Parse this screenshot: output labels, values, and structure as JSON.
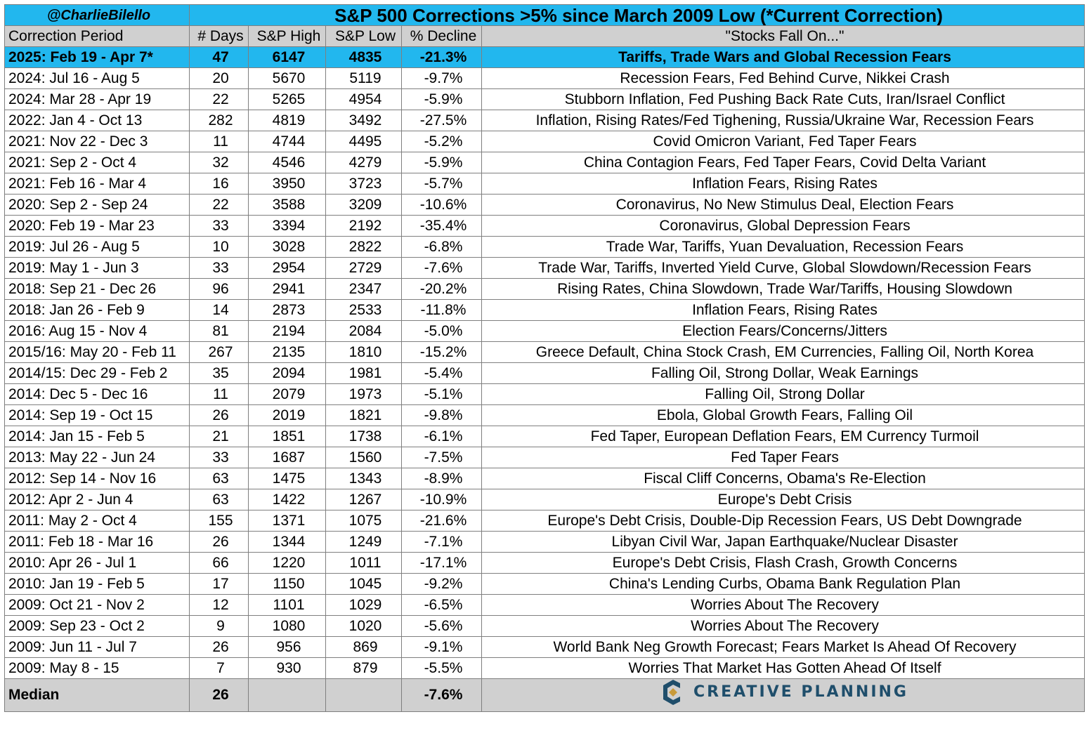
{
  "handle": "@CharlieBilello",
  "title": "S&P 500 Corrections >5% since March 2009 Low (*Current Correction)",
  "columns": [
    "Correction Period",
    "# Days",
    "S&P High",
    "S&P Low",
    "% Decline",
    "\"Stocks Fall On...\""
  ],
  "colors": {
    "accent": "#22b7ee",
    "header_bg": "#d0d0d0",
    "logo": "#1f4e6b",
    "logo_accent": "#c89a3a"
  },
  "rows": [
    {
      "period": "2025: Feb 19 - Apr 7*",
      "days": "47",
      "high": "6147",
      "low": "4835",
      "decline": "-21.3%",
      "cause": "Tariffs, Trade Wars and Global Recession Fears",
      "current": true
    },
    {
      "period": "2024: Jul 16 - Aug 5",
      "days": "20",
      "high": "5670",
      "low": "5119",
      "decline": "-9.7%",
      "cause": "Recession Fears, Fed Behind Curve, Nikkei Crash"
    },
    {
      "period": "2024: Mar 28 - Apr 19",
      "days": "22",
      "high": "5265",
      "low": "4954",
      "decline": "-5.9%",
      "cause": "Stubborn Inflation, Fed Pushing Back Rate Cuts, Iran/Israel Conflict"
    },
    {
      "period": "2022: Jan 4 - Oct 13",
      "days": "282",
      "high": "4819",
      "low": "3492",
      "decline": "-27.5%",
      "cause": "Inflation, Rising Rates/Fed Tighening, Russia/Ukraine War, Recession Fears"
    },
    {
      "period": "2021: Nov 22 - Dec 3",
      "days": "11",
      "high": "4744",
      "low": "4495",
      "decline": "-5.2%",
      "cause": "Covid Omicron Variant, Fed Taper Fears"
    },
    {
      "period": "2021: Sep 2 - Oct 4",
      "days": "32",
      "high": "4546",
      "low": "4279",
      "decline": "-5.9%",
      "cause": "China Contagion Fears, Fed Taper Fears, Covid Delta Variant"
    },
    {
      "period": "2021: Feb 16 - Mar 4",
      "days": "16",
      "high": "3950",
      "low": "3723",
      "decline": "-5.7%",
      "cause": "Inflation Fears, Rising Rates"
    },
    {
      "period": "2020: Sep 2 - Sep 24",
      "days": "22",
      "high": "3588",
      "low": "3209",
      "decline": "-10.6%",
      "cause": "Coronavirus, No New Stimulus Deal, Election Fears"
    },
    {
      "period": "2020: Feb 19 - Mar 23",
      "days": "33",
      "high": "3394",
      "low": "2192",
      "decline": "-35.4%",
      "cause": "Coronavirus, Global Depression Fears"
    },
    {
      "period": "2019: Jul 26 - Aug 5",
      "days": "10",
      "high": "3028",
      "low": "2822",
      "decline": "-6.8%",
      "cause": "Trade War, Tariffs, Yuan Devaluation, Recession Fears"
    },
    {
      "period": "2019: May 1 - Jun 3",
      "days": "33",
      "high": "2954",
      "low": "2729",
      "decline": "-7.6%",
      "cause": "Trade War, Tariffs, Inverted Yield Curve, Global Slowdown/Recession Fears"
    },
    {
      "period": "2018: Sep 21 - Dec 26",
      "days": "96",
      "high": "2941",
      "low": "2347",
      "decline": "-20.2%",
      "cause": "Rising Rates, China Slowdown, Trade War/Tariffs, Housing Slowdown"
    },
    {
      "period": "2018: Jan 26 - Feb 9",
      "days": "14",
      "high": "2873",
      "low": "2533",
      "decline": "-11.8%",
      "cause": "Inflation Fears, Rising Rates"
    },
    {
      "period": "2016: Aug 15 - Nov 4",
      "days": "81",
      "high": "2194",
      "low": "2084",
      "decline": "-5.0%",
      "cause": "Election Fears/Concerns/Jitters"
    },
    {
      "period": "2015/16: May 20 - Feb 11",
      "days": "267",
      "high": "2135",
      "low": "1810",
      "decline": "-15.2%",
      "cause": "Greece Default, China Stock Crash, EM Currencies, Falling Oil, North Korea"
    },
    {
      "period": "2014/15: Dec 29 - Feb 2",
      "days": "35",
      "high": "2094",
      "low": "1981",
      "decline": "-5.4%",
      "cause": "Falling Oil, Strong Dollar, Weak Earnings"
    },
    {
      "period": "2014: Dec 5 - Dec 16",
      "days": "11",
      "high": "2079",
      "low": "1973",
      "decline": "-5.1%",
      "cause": "Falling Oil, Strong Dollar"
    },
    {
      "period": "2014: Sep 19 - Oct 15",
      "days": "26",
      "high": "2019",
      "low": "1821",
      "decline": "-9.8%",
      "cause": "Ebola, Global Growth Fears, Falling Oil"
    },
    {
      "period": "2014: Jan 15 - Feb 5",
      "days": "21",
      "high": "1851",
      "low": "1738",
      "decline": "-6.1%",
      "cause": "Fed Taper, European Deflation Fears, EM Currency Turmoil"
    },
    {
      "period": "2013: May 22 - Jun 24",
      "days": "33",
      "high": "1687",
      "low": "1560",
      "decline": "-7.5%",
      "cause": "Fed Taper Fears"
    },
    {
      "period": "2012: Sep 14 - Nov 16",
      "days": "63",
      "high": "1475",
      "low": "1343",
      "decline": "-8.9%",
      "cause": "Fiscal Cliff Concerns, Obama's Re-Election"
    },
    {
      "period": "2012: Apr 2 - Jun 4",
      "days": "63",
      "high": "1422",
      "low": "1267",
      "decline": "-10.9%",
      "cause": "Europe's Debt Crisis"
    },
    {
      "period": "2011: May 2 - Oct 4",
      "days": "155",
      "high": "1371",
      "low": "1075",
      "decline": "-21.6%",
      "cause": "Europe's Debt Crisis, Double-Dip Recession Fears, US Debt Downgrade"
    },
    {
      "period": "2011: Feb 18 - Mar 16",
      "days": "26",
      "high": "1344",
      "low": "1249",
      "decline": "-7.1%",
      "cause": "Libyan Civil War, Japan Earthquake/Nuclear Disaster"
    },
    {
      "period": "2010: Apr 26 - Jul 1",
      "days": "66",
      "high": "1220",
      "low": "1011",
      "decline": "-17.1%",
      "cause": "Europe's Debt Crisis, Flash Crash, Growth Concerns"
    },
    {
      "period": "2010: Jan 19 - Feb 5",
      "days": "17",
      "high": "1150",
      "low": "1045",
      "decline": "-9.2%",
      "cause": "China's Lending Curbs, Obama Bank Regulation Plan"
    },
    {
      "period": "2009: Oct 21 - Nov 2",
      "days": "12",
      "high": "1101",
      "low": "1029",
      "decline": "-6.5%",
      "cause": "Worries About The Recovery"
    },
    {
      "period": "2009: Sep 23 - Oct 2",
      "days": "9",
      "high": "1080",
      "low": "1020",
      "decline": "-5.6%",
      "cause": "Worries About The Recovery"
    },
    {
      "period": "2009: Jun 11 - Jul 7",
      "days": "26",
      "high": "956",
      "low": "869",
      "decline": "-9.1%",
      "cause": "World Bank Neg Growth Forecast; Fears Market Is Ahead Of Recovery"
    },
    {
      "period": "2009: May 8 - 15",
      "days": "7",
      "high": "930",
      "low": "879",
      "decline": "-5.5%",
      "cause": "Worries That Market Has Gotten Ahead Of Itself"
    }
  ],
  "median": {
    "label": "Median",
    "days": "26",
    "decline": "-7.6%"
  },
  "logo": {
    "text": "CREATIVE PLANNING",
    "icon": "creative-planning-logo-icon"
  },
  "chart_data": {
    "type": "table",
    "title": "S&P 500 Corrections >5% since March 2009 Low (*Current Correction)",
    "columns": [
      "Correction Period",
      "# Days",
      "S&P High",
      "S&P Low",
      "% Decline",
      "\"Stocks Fall On...\""
    ],
    "median": {
      "days": 26,
      "decline_pct": -7.6
    }
  }
}
